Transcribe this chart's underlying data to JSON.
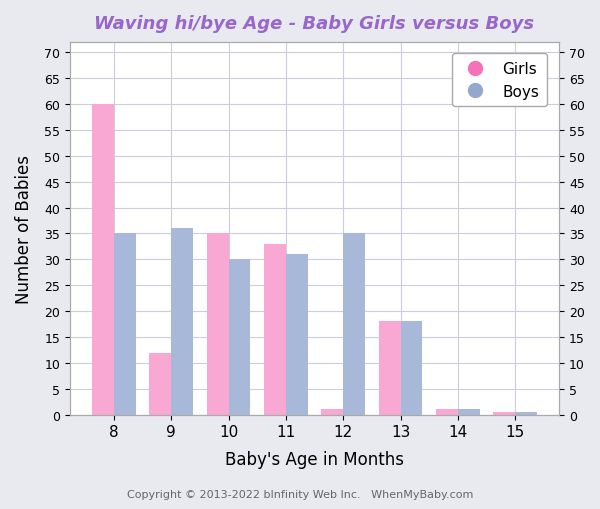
{
  "title": "Waving hi/bye Age - Baby Girls versus Boys",
  "title_color": "#9966cc",
  "xlabel": "Baby's Age in Months",
  "ylabel": "Number of Babies",
  "categories": [
    8,
    9,
    10,
    11,
    12,
    13,
    14,
    15
  ],
  "girls_values": [
    60,
    12,
    35,
    33,
    1,
    18,
    1,
    0.5
  ],
  "boys_values": [
    35,
    36,
    30,
    31,
    35,
    18,
    1,
    0.5
  ],
  "girls_color": "#f9a8d4",
  "boys_color": "#a8b8d8",
  "girls_label": "Girls",
  "boys_label": "Boys",
  "ylim": [
    0,
    72
  ],
  "yticks": [
    0,
    5,
    10,
    15,
    20,
    25,
    30,
    35,
    40,
    45,
    50,
    55,
    60,
    65,
    70
  ],
  "background_color": "#e8eaf0",
  "plot_bg_color": "#ffffff",
  "bar_width": 0.38,
  "copyright_text": "Copyright © 2013-2022 bInfinity Web Inc.   WhenMyBaby.com",
  "copyright_color": "#666666",
  "legend_marker_color_girls": "#f472b6",
  "legend_marker_color_boys": "#93a8cc"
}
